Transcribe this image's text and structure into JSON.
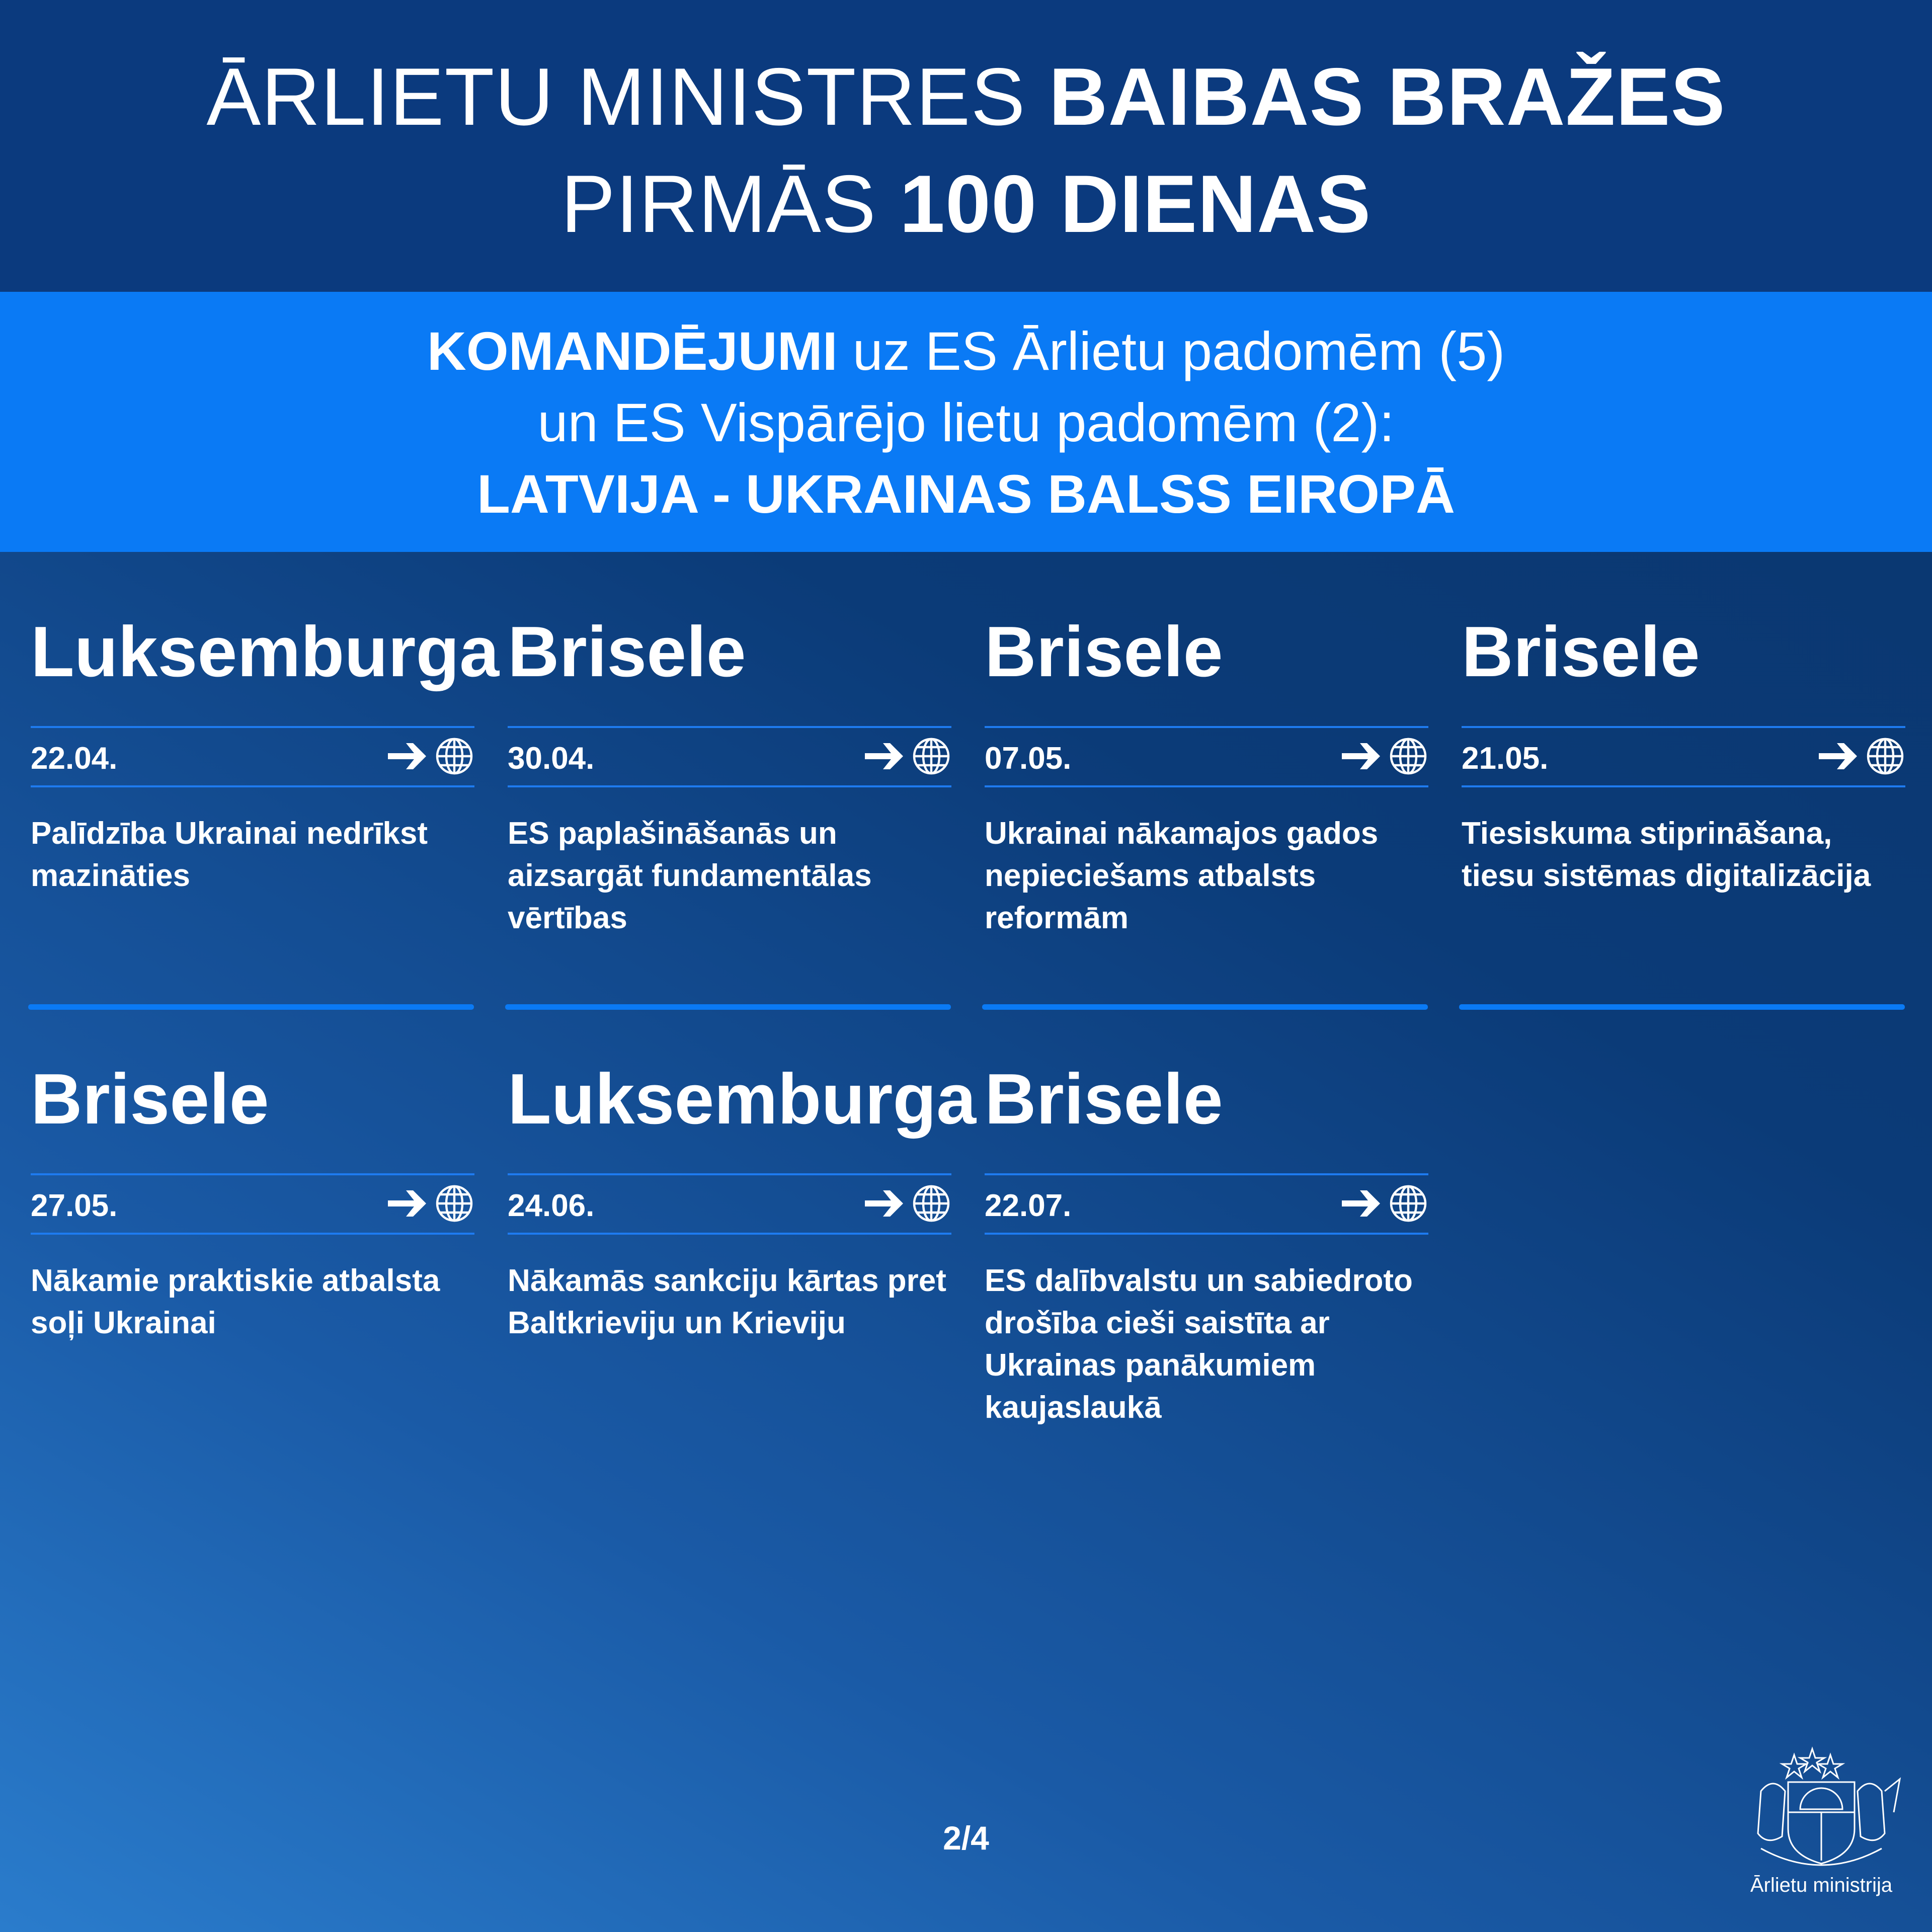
{
  "header": {
    "line1_light": "ĀRLIETU MINISTRES ",
    "line1_bold": "BAIBAS BRAŽES",
    "line2_light": "PIRMĀS ",
    "line2_bold": "100 DIENAS"
  },
  "band": {
    "line1_bold": "KOMANDĒJUMI",
    "line1_rest": " uz ES Ārlietu padomēm (5)",
    "line2": "un ES Vispārējo lietu padomēm (2):",
    "line3": "LATVIJA -  UKRAINAS BALSS EIROPĀ"
  },
  "trips": [
    {
      "city": "Luksemburga",
      "date": "22.04.",
      "text": "Palīdzība Ukrainai nedrīkst mazināties"
    },
    {
      "city": "Brisele",
      "date": "30.04.",
      "text": "ES paplašināšanās un aizsargāt fundamentālas vērtības"
    },
    {
      "city": "Brisele",
      "date": "07.05.",
      "text": "Ukrainai nākamajos gados nepieciešams atbalsts reformām"
    },
    {
      "city": "Brisele",
      "date": "21.05.",
      "text": "Tiesiskuma stiprināšana, tiesu sistēmas digitalizācija"
    },
    {
      "city": "Brisele",
      "date": "27.05.",
      "text": "Nākamie praktiskie atbalsta soļi Ukrainai"
    },
    {
      "city": "Luksemburga",
      "date": "24.06.",
      "text": "Nākamās sankciju kārtas pret Baltkrieviju un Krieviju"
    },
    {
      "city": "Brisele",
      "date": "22.07.",
      "text": "ES dalībvalstu un sabiedroto drošība cieši saistīta ar Ukrainas panākumiem kaujaslaukā"
    }
  ],
  "icons": {
    "arrow": "arrow-right-icon",
    "globe": "globe-icon"
  },
  "page_indicator": "2/4",
  "logo": {
    "text": "Ārlietu ministrija",
    "emblem": "latvia-coat-of-arms"
  },
  "colors": {
    "header_bg": "#0b3a7e",
    "band_bg": "#0a7af5",
    "accent": "#0a7af5"
  }
}
